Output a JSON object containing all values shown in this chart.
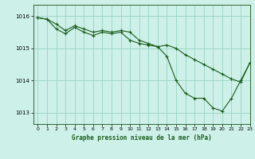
{
  "title": "Graphe pression niveau de la mer (hPa)",
  "bg_color": "#cdf0e8",
  "grid_color": "#a0d8c8",
  "line_color": "#1a5c1a",
  "xlim": [
    -0.5,
    23
  ],
  "ylim": [
    1012.65,
    1016.35
  ],
  "yticks": [
    1013,
    1014,
    1015,
    1016
  ],
  "xticks": [
    0,
    1,
    2,
    3,
    4,
    5,
    6,
    7,
    8,
    9,
    10,
    11,
    12,
    13,
    14,
    15,
    16,
    17,
    18,
    19,
    20,
    21,
    22,
    23
  ],
  "series1_x": [
    0,
    1,
    2,
    3,
    4,
    5,
    6,
    7,
    8,
    9,
    10,
    11,
    12,
    13,
    14,
    15,
    16,
    17,
    18,
    19,
    20,
    21,
    22,
    23
  ],
  "series1_y": [
    1015.95,
    1015.9,
    1015.75,
    1015.55,
    1015.7,
    1015.6,
    1015.5,
    1015.55,
    1015.5,
    1015.55,
    1015.5,
    1015.25,
    1015.15,
    1015.05,
    1014.75,
    1014.0,
    1013.6,
    1013.45,
    1013.45,
    1013.15,
    1013.05,
    1013.45,
    1014.0,
    1014.55
  ],
  "series2_x": [
    0,
    1,
    2,
    3,
    4,
    5,
    6,
    7,
    8,
    9,
    10,
    11,
    12,
    13,
    14,
    15,
    16,
    17,
    18,
    19,
    20,
    21,
    22,
    23
  ],
  "series2_y": [
    1015.95,
    1015.9,
    1015.6,
    1015.45,
    1015.65,
    1015.5,
    1015.4,
    1015.5,
    1015.45,
    1015.5,
    1015.25,
    1015.15,
    1015.1,
    1015.05,
    1015.1,
    1015.0,
    1014.8,
    1014.65,
    1014.5,
    1014.35,
    1014.2,
    1014.05,
    1013.95,
    1014.55
  ]
}
